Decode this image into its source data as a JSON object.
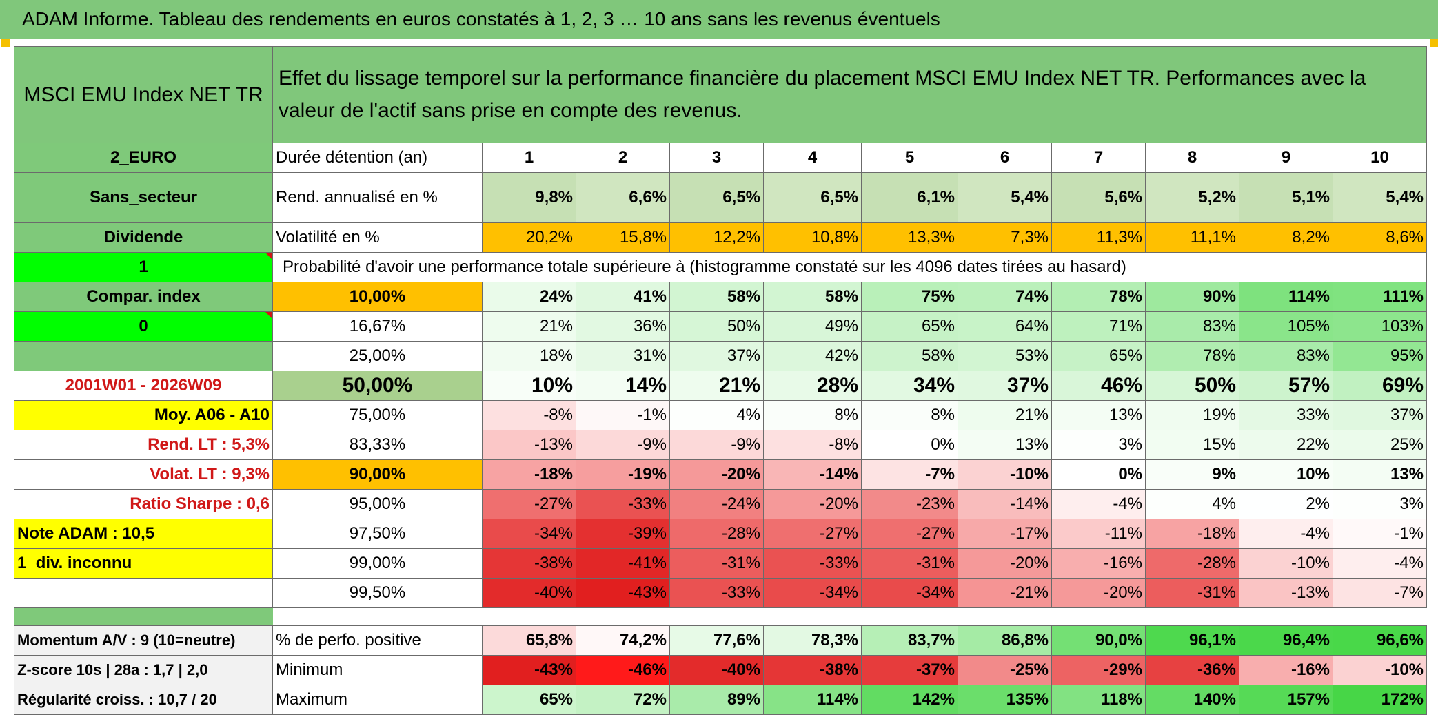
{
  "title": "ADAM Informe. Tableau des rendements en euros constatés à 1, 2, 3 … 10 ans sans les revenus éventuels",
  "header": {
    "index_name": "MSCI EMU Index NET TR",
    "description": "Effet du lissage temporel sur la performance financière du placement MSCI EMU Index NET TR. Performances avec la valeur de l'actif sans prise en compte des revenus."
  },
  "left": {
    "currency": "2_EURO",
    "sector": "Sans_secteur",
    "dividend": "Dividende",
    "one": "1",
    "compar": "Compar. index",
    "zero": "0",
    "period": "2001W01 - 2026W09",
    "moy": "Moy. A06 - A10",
    "rend_lt": "Rend. LT :   5,3%",
    "volat_lt": "Volat. LT :   9,3%",
    "sharpe": "Ratio Sharpe :    0,6",
    "note": "Note ADAM : 10,5",
    "div": "1_div. inconnu",
    "momentum": "Momentum A/V : 9 (10=neutre)",
    "zscore": "Z-score 10s | 28a : 1,7 | 2,0",
    "regularite": "Régularité croiss. : 10,7 / 20"
  },
  "labels": {
    "duree": "Durée détention (an)",
    "rend": "Rend. annualisé en %",
    "volat": "Volatilité en %",
    "proba": "Probabilité d'avoir une performance totale supérieure à (histogramme constaté sur les 4096 dates tirées au hasard)",
    "positive": "% de perfo. positive",
    "minimum": "Minimum",
    "maximum": "Maximum"
  },
  "years": [
    "1",
    "2",
    "3",
    "4",
    "5",
    "6",
    "7",
    "8",
    "9",
    "10"
  ],
  "rend": [
    "9,8%",
    "6,6%",
    "6,5%",
    "6,5%",
    "6,1%",
    "5,4%",
    "5,6%",
    "5,2%",
    "5,1%",
    "5,4%"
  ],
  "volat": [
    "20,2%",
    "15,8%",
    "12,2%",
    "10,8%",
    "13,3%",
    "7,3%",
    "11,3%",
    "11,1%",
    "8,2%",
    "8,6%"
  ],
  "percentiles": [
    {
      "p": "10,00%",
      "values": [
        "24%",
        "41%",
        "58%",
        "58%",
        "75%",
        "74%",
        "78%",
        "90%",
        "114%",
        "111%"
      ],
      "colors": [
        "#eafbea",
        "#dff8df",
        "#d2f5d2",
        "#d2f5d2",
        "#b9f0b9",
        "#bbf0bb",
        "#b3eeb3",
        "#9ee99e",
        "#7ee27e",
        "#80e380"
      ]
    },
    {
      "p": "16,67%",
      "values": [
        "21%",
        "36%",
        "50%",
        "49%",
        "65%",
        "64%",
        "71%",
        "83%",
        "105%",
        "103%"
      ],
      "colors": [
        "#eefcee",
        "#e2f9e2",
        "#d6f6d6",
        "#d8f6d8",
        "#c6f2c6",
        "#c8f3c8",
        "#bef1be",
        "#a9ebaa",
        "#8ae58a",
        "#8de58d"
      ]
    },
    {
      "p": "25,00%",
      "values": [
        "18%",
        "31%",
        "37%",
        "42%",
        "58%",
        "53%",
        "65%",
        "78%",
        "83%",
        "95%"
      ],
      "colors": [
        "#f1fcf1",
        "#e6f9e6",
        "#e0f8e0",
        "#dcf7dc",
        "#cdf3cd",
        "#d2f5d2",
        "#c6f2c6",
        "#b0edb0",
        "#a9ebaa",
        "#93e793"
      ]
    },
    {
      "p": "50,00%",
      "values": [
        "10%",
        "14%",
        "21%",
        "28%",
        "34%",
        "37%",
        "46%",
        "50%",
        "57%",
        "69%"
      ],
      "colors": [
        "#f8fef8",
        "#f3fdf3",
        "#eefcee",
        "#e8fae8",
        "#e2f9e2",
        "#e0f8e0",
        "#d9f6d9",
        "#d6f6d6",
        "#cdf3cd",
        "#c1f1c1"
      ]
    },
    {
      "p": "75,00%",
      "values": [
        "-8%",
        "-1%",
        "4%",
        "8%",
        "8%",
        "21%",
        "13%",
        "19%",
        "33%",
        "37%"
      ],
      "colors": [
        "#fde0e0",
        "#fef8f8",
        "#fdfffd",
        "#fafefa",
        "#fafefa",
        "#eefcee",
        "#f4fdf4",
        "#f0fcf0",
        "#e4f9e4",
        "#e0f8e0"
      ]
    },
    {
      "p": "83,33%",
      "values": [
        "-13%",
        "-9%",
        "-9%",
        "-8%",
        "0%",
        "13%",
        "3%",
        "15%",
        "22%",
        "25%"
      ],
      "colors": [
        "#fbc7c7",
        "#fcd9d9",
        "#fcd9d9",
        "#fde0e0",
        "#ffffff",
        "#f4fdf4",
        "#fdfffd",
        "#f2fdf2",
        "#edfbed",
        "#ebfbeb"
      ]
    },
    {
      "p": "90,00%",
      "values": [
        "-18%",
        "-19%",
        "-20%",
        "-14%",
        "-7%",
        "-10%",
        "0%",
        "9%",
        "10%",
        "13%"
      ],
      "colors": [
        "#f7a3a3",
        "#f69e9e",
        "#f59999",
        "#f9b6b6",
        "#fde3e3",
        "#fbd2d2",
        "#ffffff",
        "#f9fef9",
        "#f8fef8",
        "#f4fdf4"
      ]
    },
    {
      "p": "95,00%",
      "values": [
        "-27%",
        "-33%",
        "-24%",
        "-20%",
        "-23%",
        "-14%",
        "-4%",
        "4%",
        "2%",
        "3%"
      ],
      "colors": [
        "#ef6f6f",
        "#ea5252",
        "#f18080",
        "#f59999",
        "#f28a8a",
        "#f9bcbc",
        "#feeeee",
        "#fdfffd",
        "#feffff",
        "#fdfffd"
      ]
    },
    {
      "p": "97,50%",
      "values": [
        "-34%",
        "-39%",
        "-28%",
        "-27%",
        "-27%",
        "-17%",
        "-11%",
        "-18%",
        "-4%",
        "-1%"
      ],
      "colors": [
        "#e94b4b",
        "#e43030",
        "#ee6a6a",
        "#ef6f6f",
        "#ef6f6f",
        "#f7a9a9",
        "#fbcaca",
        "#f7a3a3",
        "#feeeee",
        "#fff9f9"
      ]
    },
    {
      "p": "99,00%",
      "values": [
        "-38%",
        "-41%",
        "-31%",
        "-33%",
        "-31%",
        "-20%",
        "-16%",
        "-28%",
        "-10%",
        "-4%"
      ],
      "colors": [
        "#e53636",
        "#e22727",
        "#ec5d5d",
        "#ea5252",
        "#ec5d5d",
        "#f59999",
        "#f8aeae",
        "#ee6a6a",
        "#fbd2d2",
        "#feeeee"
      ]
    },
    {
      "p": "99,50%",
      "values": [
        "-40%",
        "-43%",
        "-33%",
        "-34%",
        "-34%",
        "-21%",
        "-20%",
        "-31%",
        "-13%",
        "-7%"
      ],
      "colors": [
        "#e32b2b",
        "#e11f1f",
        "#ea5252",
        "#e94b4b",
        "#e94b4b",
        "#f59494",
        "#f59999",
        "#ec5d5d",
        "#fac4c4",
        "#fde3e3"
      ]
    }
  ],
  "positive": [
    "65,8%",
    "74,2%",
    "77,6%",
    "78,3%",
    "83,7%",
    "86,8%",
    "90,0%",
    "96,1%",
    "96,4%",
    "96,6%"
  ],
  "positive_colors": [
    "#fcdada",
    "#fff8f8",
    "#e7fae7",
    "#e3f9e3",
    "#b6efb6",
    "#a5eba5",
    "#74e074",
    "#4ed94e",
    "#4bd84b",
    "#49d849"
  ],
  "minimum": [
    "-43%",
    "-46%",
    "-40%",
    "-38%",
    "-37%",
    "-25%",
    "-29%",
    "-36%",
    "-16%",
    "-10%"
  ],
  "minimum_colors": [
    "#e11f1f",
    "#ff1a1a",
    "#e32b2b",
    "#e53636",
    "#e63c3c",
    "#f28a8a",
    "#ed6363",
    "#e74141",
    "#f8aeae",
    "#fbd2d2"
  ],
  "maximum": [
    "65%",
    "72%",
    "89%",
    "114%",
    "142%",
    "135%",
    "118%",
    "140%",
    "157%",
    "172%"
  ],
  "maximum_colors": [
    "#ccf5cc",
    "#c4f2c4",
    "#a9ebaa",
    "#87e387",
    "#62dc62",
    "#6bde6b",
    "#82e282",
    "#64dc64",
    "#56da56",
    "#47d647"
  ],
  "colors": {
    "header_green": "#80c77b",
    "light_green": "#c6e0b4",
    "medium_green": "#a9d08e",
    "volat_orange": "#ffc000",
    "bright_green": "#00ff00",
    "left_green": "#7fc97a",
    "yellow": "#ffff00",
    "red_text": "#d01818",
    "gray": "#f2f2f2"
  }
}
